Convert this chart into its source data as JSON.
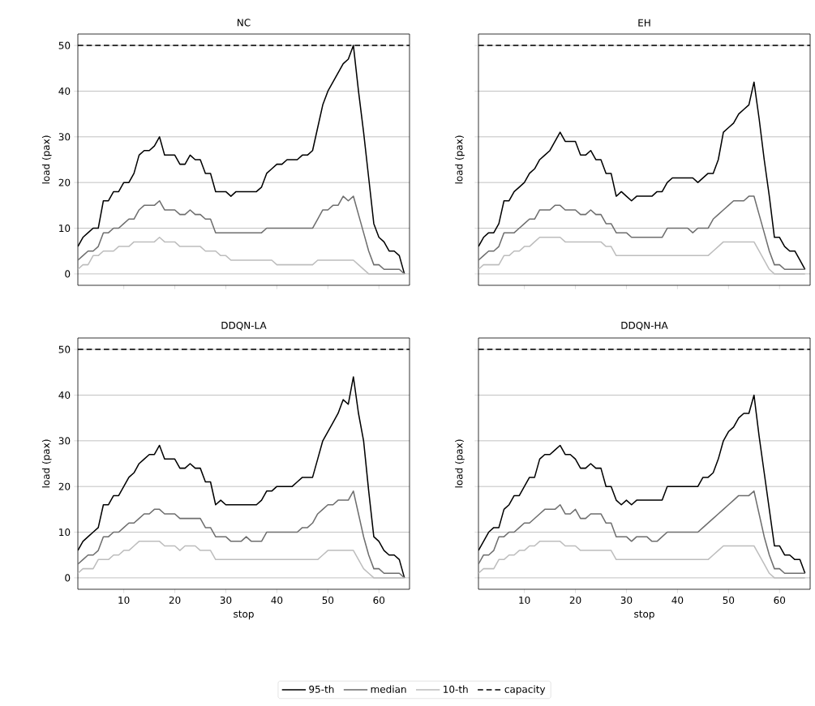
{
  "chart_data": [
    {
      "type": "line",
      "title": "NC",
      "ylabel": "load (pax)",
      "xlim": [
        1,
        66
      ],
      "ylim": [
        -2.5,
        52.5
      ],
      "xticks": [
        10,
        20,
        30,
        40,
        50,
        60
      ],
      "yticks": [
        0,
        10,
        20,
        30,
        40,
        50
      ],
      "grid": "y",
      "tick_labels": "y",
      "x": [
        1,
        2,
        3,
        4,
        5,
        6,
        7,
        8,
        9,
        10,
        11,
        12,
        13,
        14,
        15,
        16,
        17,
        18,
        19,
        20,
        21,
        22,
        23,
        24,
        25,
        26,
        27,
        28,
        29,
        30,
        31,
        32,
        33,
        34,
        35,
        36,
        37,
        38,
        39,
        40,
        41,
        42,
        43,
        44,
        45,
        46,
        47,
        48,
        49,
        50,
        51,
        52,
        53,
        54,
        55,
        56,
        57,
        58,
        59,
        60,
        61,
        62,
        63,
        64,
        65
      ],
      "ref_lines": [
        {
          "axis": "y",
          "value": 50,
          "color": "#000000",
          "line_style": "dashed"
        }
      ],
      "series": [
        {
          "color": "#000000",
          "values": [
            6,
            8,
            9,
            10,
            10,
            16,
            16,
            18,
            18,
            20,
            20,
            22,
            26,
            27,
            27,
            28,
            30,
            26,
            26,
            26,
            24,
            24,
            26,
            25,
            25,
            22,
            22,
            18,
            18,
            18,
            17,
            18,
            18,
            18,
            18,
            18,
            19,
            22,
            23,
            24,
            24,
            25,
            25,
            25,
            26,
            26,
            27,
            32,
            37,
            40,
            42,
            44,
            46,
            47,
            50,
            40,
            31,
            21,
            11,
            8,
            7,
            5,
            5,
            4,
            0
          ]
        },
        {
          "color": "#6e6e6e",
          "values": [
            3,
            4,
            5,
            5,
            6,
            9,
            9,
            10,
            10,
            11,
            12,
            12,
            14,
            15,
            15,
            15,
            16,
            14,
            14,
            14,
            13,
            13,
            14,
            13,
            13,
            12,
            12,
            9,
            9,
            9,
            9,
            9,
            9,
            9,
            9,
            9,
            9,
            10,
            10,
            10,
            10,
            10,
            10,
            10,
            10,
            10,
            10,
            12,
            14,
            14,
            15,
            15,
            17,
            16,
            17,
            13,
            9,
            5,
            2,
            2,
            1,
            1,
            1,
            1,
            0
          ]
        },
        {
          "color": "#bdbdbd",
          "values": [
            1,
            2,
            2,
            4,
            4,
            5,
            5,
            5,
            6,
            6,
            6,
            7,
            7,
            7,
            7,
            7,
            8,
            7,
            7,
            7,
            6,
            6,
            6,
            6,
            6,
            5,
            5,
            5,
            4,
            4,
            3,
            3,
            3,
            3,
            3,
            3,
            3,
            3,
            3,
            2,
            2,
            2,
            2,
            2,
            2,
            2,
            2,
            3,
            3,
            3,
            3,
            3,
            3,
            3,
            3,
            2,
            1,
            0,
            0,
            0,
            0,
            0,
            0,
            0,
            0
          ]
        }
      ]
    },
    {
      "type": "line",
      "title": "EH",
      "ylabel": "load (pax)",
      "xlim": [
        1,
        66
      ],
      "ylim": [
        -2.5,
        52.5
      ],
      "xticks": [
        10,
        20,
        30,
        40,
        50,
        60
      ],
      "yticks": [
        0,
        10,
        20,
        30,
        40,
        50
      ],
      "grid": "y",
      "tick_labels": false,
      "x": [
        1,
        2,
        3,
        4,
        5,
        6,
        7,
        8,
        9,
        10,
        11,
        12,
        13,
        14,
        15,
        16,
        17,
        18,
        19,
        20,
        21,
        22,
        23,
        24,
        25,
        26,
        27,
        28,
        29,
        30,
        31,
        32,
        33,
        34,
        35,
        36,
        37,
        38,
        39,
        40,
        41,
        42,
        43,
        44,
        45,
        46,
        47,
        48,
        49,
        50,
        51,
        52,
        53,
        54,
        55,
        56,
        57,
        58,
        59,
        60,
        61,
        62,
        63,
        64,
        65
      ],
      "ref_lines": [
        {
          "axis": "y",
          "value": 50,
          "color": "#000000",
          "line_style": "dashed"
        }
      ],
      "series": [
        {
          "color": "#000000",
          "values": [
            6,
            8,
            9,
            9,
            11,
            16,
            16,
            18,
            19,
            20,
            22,
            23,
            25,
            26,
            27,
            29,
            31,
            29,
            29,
            29,
            26,
            26,
            27,
            25,
            25,
            22,
            22,
            17,
            18,
            17,
            16,
            17,
            17,
            17,
            17,
            18,
            18,
            20,
            21,
            21,
            21,
            21,
            21,
            20,
            21,
            22,
            22,
            25,
            31,
            32,
            33,
            35,
            36,
            37,
            42,
            34,
            25,
            17,
            8,
            8,
            6,
            5,
            5,
            3,
            1
          ]
        },
        {
          "color": "#6e6e6e",
          "values": [
            3,
            4,
            5,
            5,
            6,
            9,
            9,
            9,
            10,
            11,
            12,
            12,
            14,
            14,
            14,
            15,
            15,
            14,
            14,
            14,
            13,
            13,
            14,
            13,
            13,
            11,
            11,
            9,
            9,
            9,
            8,
            8,
            8,
            8,
            8,
            8,
            8,
            10,
            10,
            10,
            10,
            10,
            9,
            10,
            10,
            10,
            12,
            13,
            14,
            15,
            16,
            16,
            16,
            17,
            17,
            13,
            9,
            5,
            2,
            2,
            1,
            1,
            1,
            1,
            1
          ]
        },
        {
          "color": "#bdbdbd",
          "values": [
            1,
            2,
            2,
            2,
            2,
            4,
            4,
            5,
            5,
            6,
            6,
            7,
            8,
            8,
            8,
            8,
            8,
            7,
            7,
            7,
            7,
            7,
            7,
            7,
            7,
            6,
            6,
            4,
            4,
            4,
            4,
            4,
            4,
            4,
            4,
            4,
            4,
            4,
            4,
            4,
            4,
            4,
            4,
            4,
            4,
            4,
            5,
            6,
            7,
            7,
            7,
            7,
            7,
            7,
            7,
            5,
            3,
            1,
            0,
            0,
            0,
            0,
            0,
            0,
            0
          ]
        }
      ]
    },
    {
      "type": "line",
      "title": "DDQN-LA",
      "xlabel": "stop",
      "ylabel": "load (pax)",
      "xlim": [
        1,
        66
      ],
      "ylim": [
        -2.5,
        52.5
      ],
      "xticks": [
        10,
        20,
        30,
        40,
        50,
        60
      ],
      "yticks": [
        0,
        10,
        20,
        30,
        40,
        50
      ],
      "grid": "y",
      "x": [
        1,
        2,
        3,
        4,
        5,
        6,
        7,
        8,
        9,
        10,
        11,
        12,
        13,
        14,
        15,
        16,
        17,
        18,
        19,
        20,
        21,
        22,
        23,
        24,
        25,
        26,
        27,
        28,
        29,
        30,
        31,
        32,
        33,
        34,
        35,
        36,
        37,
        38,
        39,
        40,
        41,
        42,
        43,
        44,
        45,
        46,
        47,
        48,
        49,
        50,
        51,
        52,
        53,
        54,
        55,
        56,
        57,
        58,
        59,
        60,
        61,
        62,
        63,
        64,
        65
      ],
      "ref_lines": [
        {
          "axis": "y",
          "value": 50,
          "color": "#000000",
          "line_style": "dashed"
        }
      ],
      "series": [
        {
          "color": "#000000",
          "values": [
            6,
            8,
            9,
            10,
            11,
            16,
            16,
            18,
            18,
            20,
            22,
            23,
            25,
            26,
            27,
            27,
            29,
            26,
            26,
            26,
            24,
            24,
            25,
            24,
            24,
            21,
            21,
            16,
            17,
            16,
            16,
            16,
            16,
            16,
            16,
            16,
            17,
            19,
            19,
            20,
            20,
            20,
            20,
            21,
            22,
            22,
            22,
            26,
            30,
            32,
            34,
            36,
            39,
            38,
            44,
            36,
            30,
            19,
            9,
            8,
            6,
            5,
            5,
            4,
            0
          ]
        },
        {
          "color": "#6e6e6e",
          "values": [
            3,
            4,
            5,
            5,
            6,
            9,
            9,
            10,
            10,
            11,
            12,
            12,
            13,
            14,
            14,
            15,
            15,
            14,
            14,
            14,
            13,
            13,
            13,
            13,
            13,
            11,
            11,
            9,
            9,
            9,
            8,
            8,
            8,
            9,
            8,
            8,
            8,
            10,
            10,
            10,
            10,
            10,
            10,
            10,
            11,
            11,
            12,
            14,
            15,
            16,
            16,
            17,
            17,
            17,
            19,
            14,
            9,
            5,
            2,
            2,
            1,
            1,
            1,
            1,
            0
          ]
        },
        {
          "color": "#bdbdbd",
          "values": [
            1,
            2,
            2,
            2,
            4,
            4,
            4,
            5,
            5,
            6,
            6,
            7,
            8,
            8,
            8,
            8,
            8,
            7,
            7,
            7,
            6,
            7,
            7,
            7,
            6,
            6,
            6,
            4,
            4,
            4,
            4,
            4,
            4,
            4,
            4,
            4,
            4,
            4,
            4,
            4,
            4,
            4,
            4,
            4,
            4,
            4,
            4,
            4,
            5,
            6,
            6,
            6,
            6,
            6,
            6,
            4,
            2,
            1,
            0,
            0,
            0,
            0,
            0,
            0,
            0
          ]
        }
      ]
    },
    {
      "type": "line",
      "title": "DDQN-HA",
      "xlabel": "stop",
      "ylabel": "load (pax)",
      "xlim": [
        1,
        66
      ],
      "ylim": [
        -2.5,
        52.5
      ],
      "xticks": [
        10,
        20,
        30,
        40,
        50,
        60
      ],
      "yticks": [
        0,
        10,
        20,
        30,
        40,
        50
      ],
      "grid": "y",
      "tick_labels": "x",
      "legend": "bottom",
      "x": [
        1,
        2,
        3,
        4,
        5,
        6,
        7,
        8,
        9,
        10,
        11,
        12,
        13,
        14,
        15,
        16,
        17,
        18,
        19,
        20,
        21,
        22,
        23,
        24,
        25,
        26,
        27,
        28,
        29,
        30,
        31,
        32,
        33,
        34,
        35,
        36,
        37,
        38,
        39,
        40,
        41,
        42,
        43,
        44,
        45,
        46,
        47,
        48,
        49,
        50,
        51,
        52,
        53,
        54,
        55,
        56,
        57,
        58,
        59,
        60,
        61,
        62,
        63,
        64,
        65
      ],
      "ref_lines": [
        {
          "axis": "y",
          "value": 50,
          "label": "capacity",
          "color": "#000000",
          "line_style": "dashed"
        }
      ],
      "series": [
        {
          "name": "95-th",
          "color": "#000000",
          "values": [
            6,
            8,
            10,
            11,
            11,
            15,
            16,
            18,
            18,
            20,
            22,
            22,
            26,
            27,
            27,
            28,
            29,
            27,
            27,
            26,
            24,
            24,
            25,
            24,
            24,
            20,
            20,
            17,
            16,
            17,
            16,
            17,
            17,
            17,
            17,
            17,
            17,
            20,
            20,
            20,
            20,
            20,
            20,
            20,
            22,
            22,
            23,
            26,
            30,
            32,
            33,
            35,
            36,
            36,
            40,
            31,
            23,
            15,
            7,
            7,
            5,
            5,
            4,
            4,
            1
          ]
        },
        {
          "name": "median",
          "color": "#6e6e6e",
          "values": [
            3,
            5,
            5,
            6,
            9,
            9,
            10,
            10,
            11,
            12,
            12,
            13,
            14,
            15,
            15,
            15,
            16,
            14,
            14,
            15,
            13,
            13,
            14,
            14,
            14,
            12,
            12,
            9,
            9,
            9,
            8,
            9,
            9,
            9,
            8,
            8,
            9,
            10,
            10,
            10,
            10,
            10,
            10,
            10,
            11,
            12,
            13,
            14,
            15,
            16,
            17,
            18,
            18,
            18,
            19,
            14,
            9,
            5,
            2,
            2,
            1,
            1,
            1,
            1,
            1
          ]
        },
        {
          "name": "10-th",
          "color": "#bdbdbd",
          "values": [
            1,
            2,
            2,
            2,
            4,
            4,
            5,
            5,
            6,
            6,
            7,
            7,
            8,
            8,
            8,
            8,
            8,
            7,
            7,
            7,
            6,
            6,
            6,
            6,
            6,
            6,
            6,
            4,
            4,
            4,
            4,
            4,
            4,
            4,
            4,
            4,
            4,
            4,
            4,
            4,
            4,
            4,
            4,
            4,
            4,
            4,
            5,
            6,
            7,
            7,
            7,
            7,
            7,
            7,
            7,
            5,
            3,
            1,
            0,
            0,
            0,
            0,
            0,
            0,
            0
          ]
        }
      ]
    }
  ]
}
